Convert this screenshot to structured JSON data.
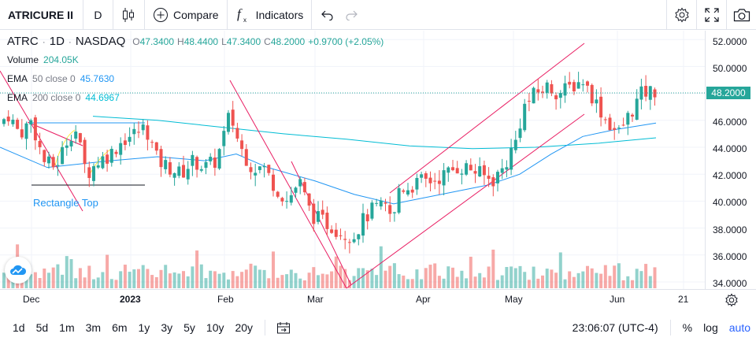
{
  "toolbar": {
    "symbol": "ATRICURE II",
    "interval": "D",
    "compare_label": "Compare",
    "indicators_label": "Indicators"
  },
  "legend": {
    "symbol": "ATRC",
    "interval": "1D",
    "exchange": "NASDAQ",
    "open_label": "O",
    "open": "47.3400",
    "high_label": "H",
    "high": "48.4400",
    "low_label": "L",
    "low": "47.3400",
    "close_label": "C",
    "close": "48.2000",
    "change": "+0.9700 (+2.05%)",
    "volume_label": "Volume",
    "volume_value": "204.05K",
    "ema50_label": "EMA",
    "ema50_params": "50 close 0",
    "ema50_value": "45.7630",
    "ema200_label": "EMA",
    "ema200_params": "200 close 0",
    "ema200_value": "44.6967"
  },
  "drawing_label": "Rectangle Top",
  "price_axis": {
    "ticks": [
      "52.0000",
      "50.0000",
      "48.0000",
      "46.0000",
      "44.0000",
      "42.0000",
      "40.0000",
      "38.0000",
      "36.0000",
      "34.0000"
    ],
    "last_price": "48.2000"
  },
  "time_axis": {
    "labels": [
      "Dec",
      "2023",
      "Feb",
      "Mar",
      "Apr",
      "May",
      "Jun",
      "21"
    ]
  },
  "bottom": {
    "ranges": [
      "1d",
      "5d",
      "1m",
      "3m",
      "6m",
      "1y",
      "3y",
      "5y",
      "10y",
      "20y"
    ],
    "clock": "23:06:07 (UTC-4)",
    "percent": "%",
    "log": "log",
    "auto": "auto"
  },
  "colors": {
    "up": "#26a69a",
    "down": "#ef5350",
    "ema50": "#2196f3",
    "ema200": "#00bcd4",
    "drawing": "#e91e63",
    "rectangle": "#2196f3"
  },
  "chart_data": {
    "type": "candlestick",
    "symbol": "ATRC",
    "last_close": 48.2,
    "ema50_last": 45.763,
    "ema200_last": 44.6967,
    "ylim": [
      34,
      52
    ]
  }
}
